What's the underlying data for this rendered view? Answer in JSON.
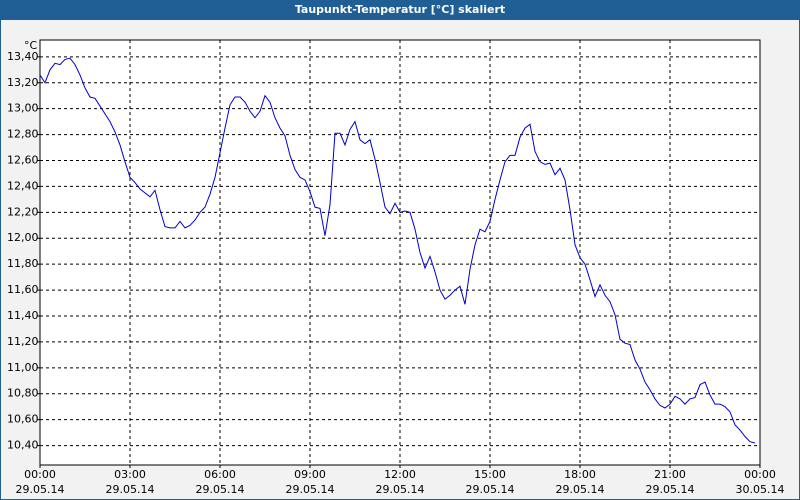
{
  "chart_data": {
    "type": "line",
    "title": "Taupunkt-Temperatur [°C] skaliert",
    "ylabel": "°C",
    "color": "#0000cc",
    "grid": true,
    "x": [
      0,
      10,
      20,
      30,
      40,
      50,
      60,
      70,
      80,
      90,
      100,
      110,
      120,
      130,
      140,
      150,
      160,
      170,
      180,
      190,
      200,
      210,
      220,
      230,
      240,
      250,
      260,
      270,
      280,
      290,
      300,
      310,
      320,
      330,
      340,
      350,
      360,
      370,
      380,
      390,
      400,
      410,
      420,
      430,
      440,
      450,
      460,
      470,
      480,
      490,
      500,
      510,
      520,
      530,
      540,
      550,
      560,
      570,
      580,
      590,
      600,
      610,
      620,
      630,
      640,
      650,
      660,
      670,
      680,
      690,
      700,
      710,
      720,
      730,
      740,
      750,
      760,
      770,
      780,
      790,
      800,
      810,
      820,
      830,
      840,
      850,
      860,
      870,
      880,
      890,
      900,
      910,
      920,
      930,
      940,
      950,
      960,
      970,
      980,
      990,
      1000,
      1010,
      1020,
      1030,
      1040,
      1050,
      1060,
      1070,
      1080,
      1090,
      1100,
      1110,
      1120,
      1130,
      1140,
      1150,
      1160,
      1170,
      1180,
      1190,
      1200,
      1210,
      1220,
      1230,
      1240,
      1250,
      1260,
      1270,
      1280,
      1290,
      1300,
      1310,
      1320,
      1330,
      1340,
      1350,
      1360,
      1370,
      1380,
      1390,
      1400,
      1410,
      1420,
      1430
    ],
    "values": [
      13.26,
      13.2,
      13.3,
      13.35,
      13.34,
      13.38,
      13.39,
      13.34,
      13.26,
      13.16,
      13.09,
      13.08,
      13.02,
      12.96,
      12.9,
      12.82,
      12.72,
      12.59,
      12.47,
      12.43,
      12.38,
      12.35,
      12.32,
      12.37,
      12.22,
      12.09,
      12.08,
      12.08,
      12.13,
      12.08,
      12.1,
      12.14,
      12.2,
      12.24,
      12.34,
      12.47,
      12.66,
      12.85,
      13.03,
      13.09,
      13.09,
      13.05,
      12.98,
      12.93,
      12.98,
      13.1,
      13.05,
      12.93,
      12.85,
      12.79,
      12.64,
      12.53,
      12.47,
      12.45,
      12.36,
      12.24,
      12.23,
      12.02,
      12.26,
      12.81,
      12.81,
      12.72,
      12.84,
      12.9,
      12.76,
      12.73,
      12.76,
      12.61,
      12.43,
      12.24,
      12.19,
      12.27,
      12.2,
      12.21,
      12.2,
      12.07,
      11.89,
      11.77,
      11.86,
      11.74,
      11.6,
      11.53,
      11.56,
      11.6,
      11.63,
      11.49,
      11.76,
      11.95,
      12.07,
      12.05,
      12.13,
      12.3,
      12.45,
      12.59,
      12.64,
      12.64,
      12.78,
      12.85,
      12.88,
      12.67,
      12.59,
      12.57,
      12.58,
      12.49,
      12.54,
      12.45,
      12.22,
      11.95,
      11.85,
      11.8,
      11.68,
      11.55,
      11.64,
      11.56,
      11.51,
      11.41,
      11.22,
      11.19,
      11.18,
      11.06,
      10.99,
      10.89,
      10.83,
      10.76,
      10.71,
      10.69,
      10.72,
      10.78,
      10.76,
      10.72,
      10.76,
      10.77,
      10.87,
      10.89,
      10.79,
      10.72,
      10.72,
      10.7,
      10.66,
      10.56,
      10.52,
      10.47,
      10.43,
      10.42
    ],
    "xlim": [
      0,
      1440
    ],
    "xticks": [
      {
        "value": 0,
        "label": [
          "00:00",
          "29.05.14"
        ]
      },
      {
        "value": 180,
        "label": [
          "03:00",
          "29.05.14"
        ]
      },
      {
        "value": 360,
        "label": [
          "06:00",
          "29.05.14"
        ]
      },
      {
        "value": 540,
        "label": [
          "09:00",
          "29.05.14"
        ]
      },
      {
        "value": 720,
        "label": [
          "12:00",
          "29.05.14"
        ]
      },
      {
        "value": 900,
        "label": [
          "15:00",
          "29.05.14"
        ]
      },
      {
        "value": 1080,
        "label": [
          "18:00",
          "29.05.14"
        ]
      },
      {
        "value": 1260,
        "label": [
          "21:00",
          "29.05.14"
        ]
      },
      {
        "value": 1440,
        "label": [
          "00:00",
          "30.05.14"
        ]
      }
    ],
    "ylim": [
      10.25,
      13.53
    ],
    "yticks": [
      {
        "value": 10.4,
        "label": "10,40"
      },
      {
        "value": 10.6,
        "label": "10,60"
      },
      {
        "value": 10.8,
        "label": "10,80"
      },
      {
        "value": 11.0,
        "label": "11,00"
      },
      {
        "value": 11.2,
        "label": "11,20"
      },
      {
        "value": 11.4,
        "label": "11,40"
      },
      {
        "value": 11.6,
        "label": "11,60"
      },
      {
        "value": 11.8,
        "label": "11,80"
      },
      {
        "value": 12.0,
        "label": "12,00"
      },
      {
        "value": 12.2,
        "label": "12,20"
      },
      {
        "value": 12.4,
        "label": "12,40"
      },
      {
        "value": 12.6,
        "label": "12,60"
      },
      {
        "value": 12.8,
        "label": "12,80"
      },
      {
        "value": 13.0,
        "label": "13,00"
      },
      {
        "value": 13.2,
        "label": "13,20"
      },
      {
        "value": 13.4,
        "label": "13,40"
      }
    ]
  }
}
